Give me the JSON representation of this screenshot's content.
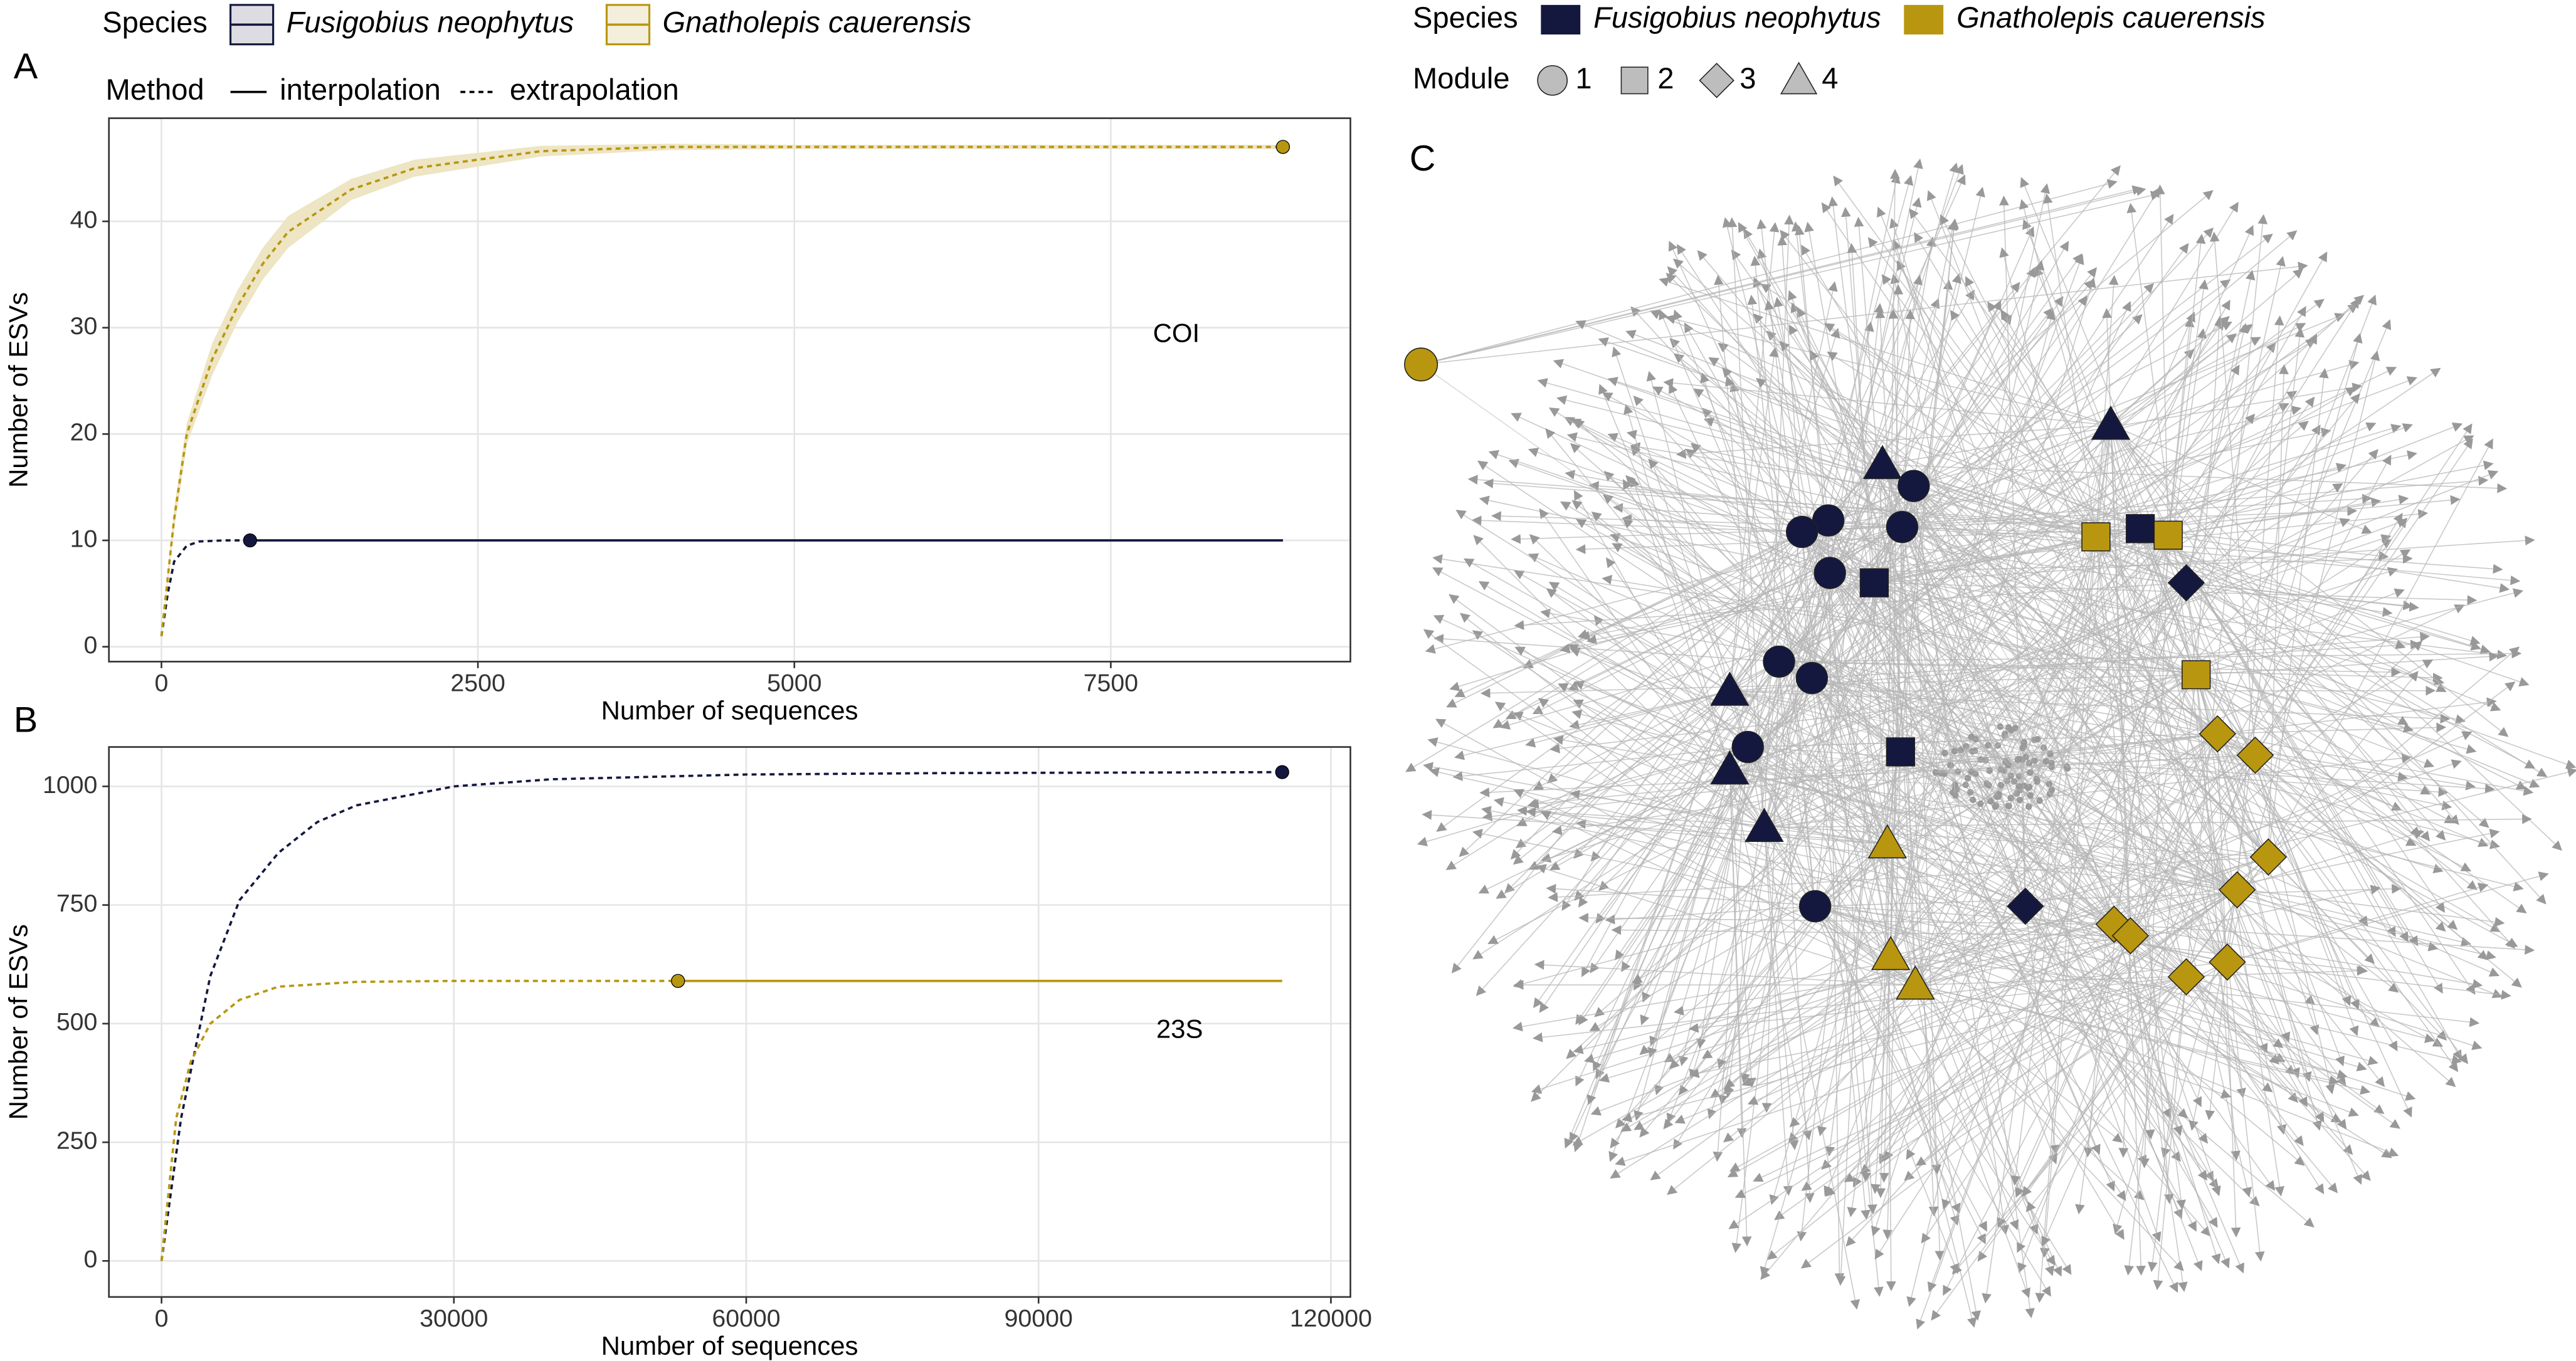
{
  "chart_data": [
    {
      "type": "line",
      "panel": "A",
      "legend_title": "Species",
      "method_title": "Method",
      "xlabel": "Number of sequences",
      "ylabel": "Number of ESVs",
      "annotation": "COI",
      "xlim": [
        -415,
        9393
      ],
      "xticks": [
        0,
        2500,
        5000,
        7500
      ],
      "ylim": [
        -1.4,
        49.7
      ],
      "yticks": [
        0,
        10,
        20,
        30,
        40
      ],
      "grid": true,
      "series": [
        {
          "name": "Fusigobius neophytus",
          "method": "interpolation",
          "dashed": false,
          "color": "#14183f",
          "x": [
            700,
            8860
          ],
          "values": [
            10,
            10
          ]
        },
        {
          "name": "Fusigobius neophytus",
          "method": "extrapolation",
          "dashed": true,
          "color": "#14183f",
          "x": [
            0,
            50,
            100,
            200,
            300,
            500,
            700
          ],
          "values": [
            1,
            5,
            8,
            9.5,
            9.9,
            10,
            10
          ]
        },
        {
          "name": "Gnatholepis cauerensis",
          "method": "extrapolation",
          "dashed": true,
          "color": "#b8960f",
          "x": [
            0,
            100,
            200,
            400,
            600,
            800,
            1000,
            1500,
            2000,
            3000,
            4000,
            5000,
            6000,
            7000,
            8000,
            8860
          ],
          "values": [
            1,
            12,
            20,
            27,
            32,
            36,
            39,
            43,
            45,
            46.6,
            47,
            47,
            47,
            47,
            47,
            47
          ],
          "lower": [
            1,
            11,
            19,
            25.5,
            30.5,
            34.5,
            37.5,
            42,
            44.2,
            46.1,
            46.7,
            46.8,
            46.8,
            46.8,
            46.8,
            46.8
          ],
          "upper": [
            1,
            13,
            21,
            28.5,
            33.5,
            37.5,
            40.5,
            44,
            45.8,
            47.1,
            47.3,
            47.2,
            47.2,
            47.2,
            47.2,
            47.2
          ]
        }
      ],
      "points": {
        "x": [
          700,
          8860
        ],
        "values": [
          10,
          47
        ],
        "colors": [
          "#14183f",
          "#b8960f"
        ]
      }
    },
    {
      "type": "line",
      "panel": "B",
      "xlabel": "Number of sequences",
      "ylabel": "Number of ESVs",
      "annotation": "23S",
      "xlim": [
        -5400,
        122000
      ],
      "xticks": [
        0,
        30000,
        60000,
        90000,
        120000
      ],
      "ylim": [
        -76,
        1083
      ],
      "yticks": [
        0,
        250,
        500,
        750,
        1000
      ],
      "grid": true,
      "series": [
        {
          "name": "Fusigobius neophytus",
          "method": "extrapolation",
          "dashed": true,
          "color": "#14183f",
          "x": [
            0,
            2000,
            5000,
            8000,
            12000,
            16000,
            20000,
            30000,
            40000,
            60000,
            80000,
            115000
          ],
          "values": [
            0,
            300,
            600,
            760,
            860,
            925,
            960,
            1000,
            1015,
            1025,
            1028,
            1030
          ]
        },
        {
          "name": "Gnatholepis cauerensis",
          "method": "extrapolation",
          "dashed": true,
          "color": "#b8960f",
          "x": [
            0,
            1500,
            3000,
            5000,
            8000,
            12000,
            20000,
            30000,
            53000
          ],
          "values": [
            0,
            300,
            420,
            500,
            550,
            578,
            588,
            590,
            590
          ]
        },
        {
          "name": "Gnatholepis cauerensis",
          "method": "interpolation",
          "dashed": false,
          "color": "#b8960f",
          "x": [
            53000,
            115000
          ],
          "values": [
            590,
            590
          ]
        }
      ],
      "points": {
        "x": [
          115000,
          53000
        ],
        "values": [
          1030,
          590
        ],
        "colors": [
          "#14183f",
          "#b8960f"
        ]
      }
    }
  ],
  "network": {
    "panel": "C",
    "legend_title": "Species",
    "species": [
      {
        "name": "Fusigobius neophytus",
        "color": "#14183f"
      },
      {
        "name": "Gnatholepis cauerensis",
        "color": "#b8960f"
      }
    ],
    "module_title": "Module",
    "modules": [
      1,
      2,
      3,
      4
    ]
  }
}
